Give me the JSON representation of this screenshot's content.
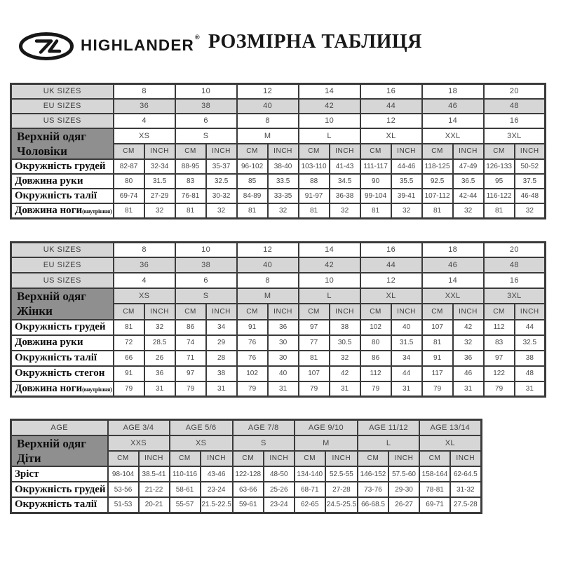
{
  "colors": {
    "header_cell_gray": "#d6d6d6",
    "group_cell_dark_gray": "#8f8f8f",
    "border": "#3b3b3b",
    "brand_black": "#171717"
  },
  "header": {
    "logo_icon": "highlander-oval-monogram",
    "brand": "HIGHLANDER",
    "registered_mark": "®",
    "title": "РОЗМІРНА ТАБЛИЦЯ"
  },
  "tables": [
    {
      "id": "men",
      "size_rows": [
        {
          "label": "UK SIZES",
          "shaded": false,
          "values": [
            "8",
            "10",
            "12",
            "14",
            "16",
            "18",
            "20"
          ]
        },
        {
          "label": "EU SIZES",
          "shaded": true,
          "values": [
            "36",
            "38",
            "40",
            "42",
            "44",
            "46",
            "48"
          ]
        },
        {
          "label": "US SIZES",
          "shaded": false,
          "values": [
            "4",
            "6",
            "8",
            "10",
            "12",
            "14",
            "16"
          ]
        }
      ],
      "group_label_lines": [
        "Верхній одяг",
        "Чоловіки"
      ],
      "letter_sizes": [
        "XS",
        "S",
        "M",
        "L",
        "XL",
        "XXL",
        "3XL"
      ],
      "letters_shaded": false,
      "unit_cm": "CM",
      "unit_inch": "INCH",
      "rows": [
        {
          "label": "Окружність грудей",
          "note": "",
          "values": [
            "82-87",
            "32-34",
            "88-95",
            "35-37",
            "96-102",
            "38-40",
            "103-110",
            "41-43",
            "111-117",
            "44-46",
            "118-125",
            "47-49",
            "126-133",
            "50-52"
          ]
        },
        {
          "label": "Довжина руки",
          "note": "",
          "values": [
            "80",
            "31.5",
            "83",
            "32.5",
            "85",
            "33.5",
            "88",
            "34.5",
            "90",
            "35.5",
            "92.5",
            "36.5",
            "95",
            "37.5"
          ]
        },
        {
          "label": "Окружність талії",
          "note": "",
          "values": [
            "69-74",
            "27-29",
            "76-81",
            "30-32",
            "84-89",
            "33-35",
            "91-97",
            "36-38",
            "99-104",
            "39-41",
            "107-112",
            "42-44",
            "116-122",
            "46-48"
          ]
        },
        {
          "label": "Довжина ноги",
          "note": "(внутрішня)",
          "values": [
            "81",
            "32",
            "81",
            "32",
            "81",
            "32",
            "81",
            "32",
            "81",
            "32",
            "81",
            "32",
            "81",
            "32"
          ]
        }
      ]
    },
    {
      "id": "women",
      "size_rows": [
        {
          "label": "UK SIZES",
          "shaded": false,
          "values": [
            "8",
            "10",
            "12",
            "14",
            "16",
            "18",
            "20"
          ]
        },
        {
          "label": "EU SIZES",
          "shaded": true,
          "values": [
            "36",
            "38",
            "40",
            "42",
            "44",
            "46",
            "48"
          ]
        },
        {
          "label": "US SIZES",
          "shaded": false,
          "values": [
            "4",
            "6",
            "8",
            "10",
            "12",
            "14",
            "16"
          ]
        }
      ],
      "group_label_lines": [
        "Верхній одяг",
        "Жінки"
      ],
      "letter_sizes": [
        "XS",
        "S",
        "M",
        "L",
        "XL",
        "XXL",
        "3XL"
      ],
      "letters_shaded": true,
      "unit_cm": "CM",
      "unit_inch": "INCH",
      "rows": [
        {
          "label": "Окружність грудей",
          "note": "",
          "values": [
            "81",
            "32",
            "86",
            "34",
            "91",
            "36",
            "97",
            "38",
            "102",
            "40",
            "107",
            "42",
            "112",
            "44"
          ]
        },
        {
          "label": "Довжина руки",
          "note": "",
          "values": [
            "72",
            "28.5",
            "74",
            "29",
            "76",
            "30",
            "77",
            "30.5",
            "80",
            "31.5",
            "81",
            "32",
            "83",
            "32.5"
          ]
        },
        {
          "label": "Окружність талії",
          "note": "",
          "values": [
            "66",
            "26",
            "71",
            "28",
            "76",
            "30",
            "81",
            "32",
            "86",
            "34",
            "91",
            "36",
            "97",
            "38"
          ]
        },
        {
          "label": "Окружність стегон",
          "note": "",
          "values": [
            "91",
            "36",
            "97",
            "38",
            "102",
            "40",
            "107",
            "42",
            "112",
            "44",
            "117",
            "46",
            "122",
            "48"
          ]
        },
        {
          "label": "Довжина ноги",
          "note": "(внутрішня)",
          "values": [
            "79",
            "31",
            "79",
            "31",
            "79",
            "31",
            "79",
            "31",
            "79",
            "31",
            "79",
            "31",
            "79",
            "31"
          ]
        }
      ]
    },
    {
      "id": "kids",
      "size_rows": [
        {
          "label": "AGE",
          "shaded": true,
          "values": [
            "AGE 3/4",
            "AGE 5/6",
            "AGE 7/8",
            "AGE 9/10",
            "AGE 11/12",
            "AGE 13/14"
          ]
        }
      ],
      "group_label_lines": [
        "Верхній одяг",
        "Діти"
      ],
      "letter_sizes": [
        "XXS",
        "XS",
        "S",
        "M",
        "L",
        "XL"
      ],
      "letters_shaded": true,
      "unit_cm": "CM",
      "unit_inch": "INCH",
      "rows": [
        {
          "label": "Зріст",
          "note": "",
          "values": [
            "98-104",
            "38.5-41",
            "110-116",
            "43-46",
            "122-128",
            "48-50",
            "134-140",
            "52.5-55",
            "146-152",
            "57.5-60",
            "158-164",
            "62-64.5"
          ]
        },
        {
          "label": "Окружність грудей",
          "note": "",
          "values": [
            "53-56",
            "21-22",
            "58-61",
            "23-24",
            "63-66",
            "25-26",
            "68-71",
            "27-28",
            "73-76",
            "29-30",
            "78-81",
            "31-32"
          ]
        },
        {
          "label": "Окружність талії",
          "note": "",
          "values": [
            "51-53",
            "20-21",
            "55-57",
            "21.5-22.5",
            "59-61",
            "23-24",
            "62-65",
            "24.5-25.5",
            "66-68.5",
            "26-27",
            "69-71",
            "27.5-28"
          ]
        }
      ]
    }
  ]
}
